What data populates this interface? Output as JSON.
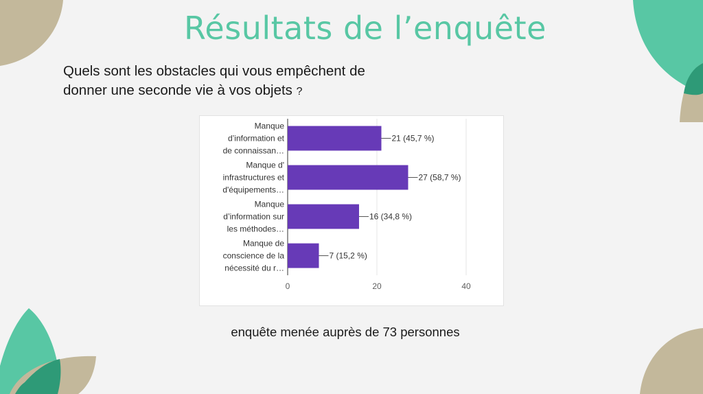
{
  "slide": {
    "title": "Résultats de l’enquête",
    "question_line1": "Quels sont les obstacles qui vous empêchent de",
    "question_line2": "donner une seconde vie à vos objets",
    "question_mark": "?",
    "footnote": "enquête menée auprès de 73 personnes"
  },
  "colors": {
    "title": "#58c7a4",
    "bar": "#673ab7",
    "leaf_green": "#58c7a4",
    "leaf_dark_green": "#2e9a77",
    "leaf_tan": "#c3b89b"
  },
  "chart_data": {
    "type": "bar",
    "orientation": "horizontal",
    "categories": [
      [
        "Manque",
        "d’information et",
        "de connaissan…"
      ],
      [
        "Manque d'",
        "infrastructures et",
        "d'équipements…"
      ],
      [
        "Manque",
        "d’information sur",
        "les méthodes…"
      ],
      [
        "Manque de",
        "conscience de la",
        "nécessité du r…"
      ]
    ],
    "values": [
      21,
      27,
      16,
      7
    ],
    "data_labels": [
      "21 (45,7 %)",
      "27 (58,7 %)",
      "16 (34,8 %)",
      "7 (15,2 %)"
    ],
    "xlim": [
      0,
      40
    ],
    "xticks": [
      0,
      20,
      40
    ],
    "grid": true,
    "legend": "none"
  }
}
